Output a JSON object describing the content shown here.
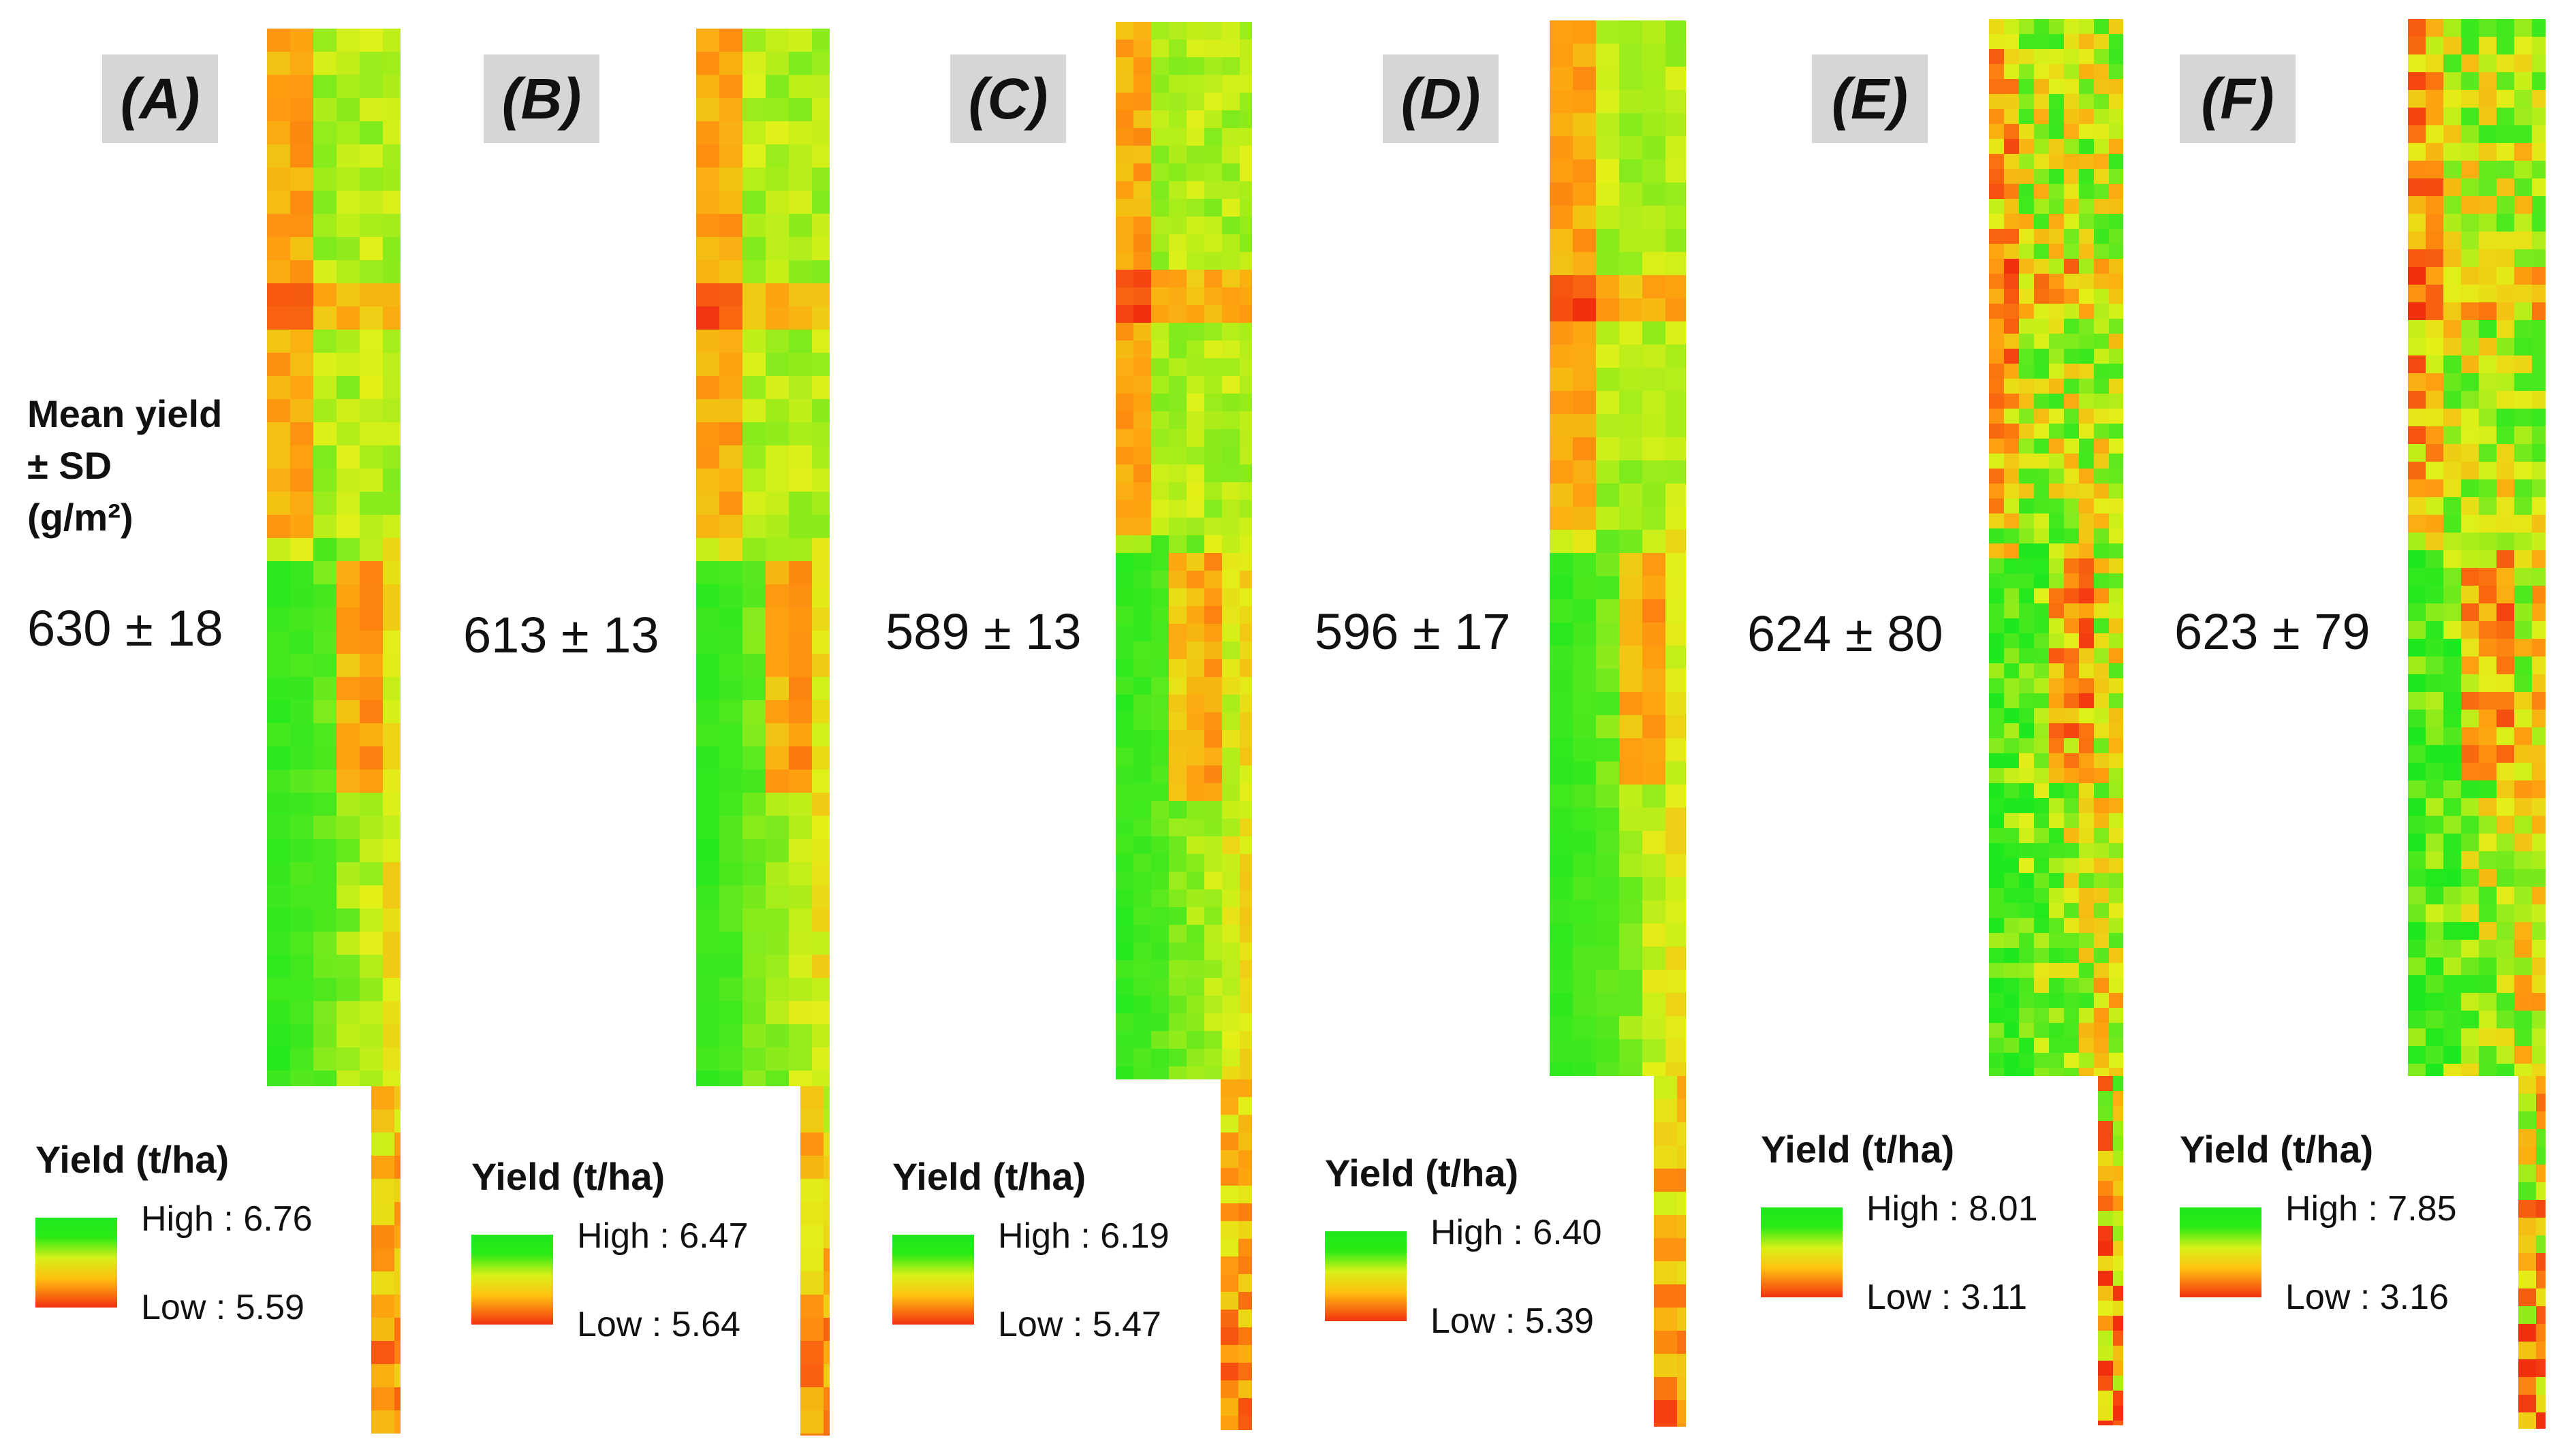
{
  "y_axis_label": {
    "line1": "Mean yield",
    "line2": "± SD",
    "line3": "(g/m²)"
  },
  "panels": [
    {
      "label": "(A)",
      "mean_sd": "630 ± 18",
      "legend_title": "Yield (t/ha)",
      "high": "High : 6.76",
      "low": "Low : 5.59",
      "map_style": "smooth"
    },
    {
      "label": "(B)",
      "mean_sd": "613 ± 13",
      "legend_title": "Yield (t/ha)",
      "high": "High : 6.47",
      "low": "Low : 5.64",
      "map_style": "smooth"
    },
    {
      "label": "(C)",
      "mean_sd": "589 ± 13",
      "legend_title": "Yield (t/ha)",
      "high": "High : 6.19",
      "low": "Low : 5.47",
      "map_style": "pixelated"
    },
    {
      "label": "(D)",
      "mean_sd": "596 ± 17",
      "legend_title": "Yield (t/ha)",
      "high": "High : 6.40",
      "low": "Low : 5.39",
      "map_style": "smooth"
    },
    {
      "label": "(E)",
      "mean_sd": "624 ± 80",
      "legend_title": "Yield (t/ha)",
      "high": "High : 8.01",
      "low": "Low : 3.11",
      "map_style": "noisy"
    },
    {
      "label": "(F)",
      "mean_sd": "623 ± 79",
      "legend_title": "Yield (t/ha)",
      "high": "High : 7.85",
      "low": "Low : 3.16",
      "map_style": "pixelated-noisy"
    }
  ],
  "colors": {
    "high": "#1ee81e",
    "mid": "#d8f018",
    "low": "#f23010",
    "badge_bg": "#d6d6d6"
  }
}
